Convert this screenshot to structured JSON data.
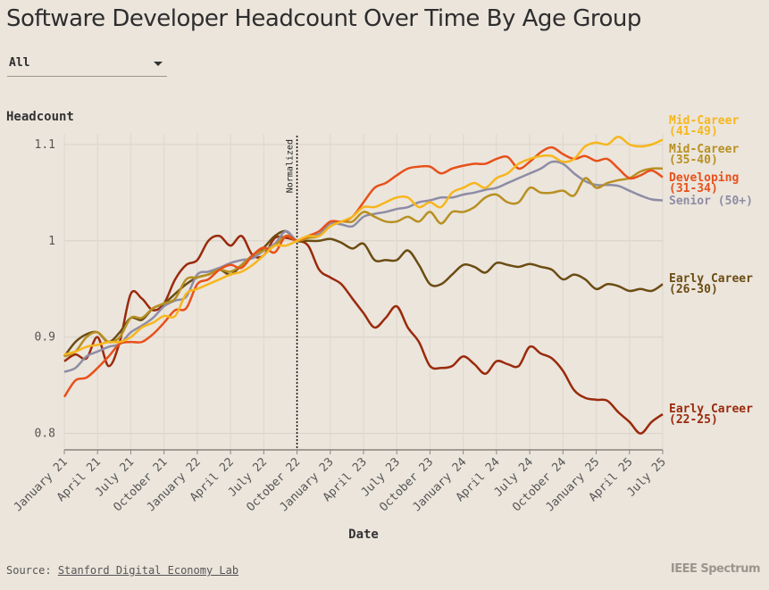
{
  "chart_data": {
    "type": "line",
    "title": "Software Developer Headcount Over Time By Age Group",
    "filter": "All",
    "ylabel": "Headcount",
    "xlabel": "Date",
    "annotation": {
      "text": "Normalized",
      "x": "October 22"
    },
    "categories": [
      "January 21",
      null,
      null,
      "April 21",
      null,
      null,
      "July 21",
      null,
      null,
      "October 21",
      null,
      null,
      "January 22",
      null,
      null,
      "April 22",
      null,
      null,
      "July 22",
      null,
      null,
      "October 22",
      null,
      null,
      "January 23",
      null,
      null,
      "April 23",
      null,
      null,
      "July 23",
      null,
      null,
      "October 23",
      null,
      null,
      "January 24",
      null,
      null,
      "April 24",
      null,
      null,
      "July 24",
      null,
      null,
      "October 24",
      null,
      null,
      "January 25",
      null,
      null,
      "April 25",
      null,
      null,
      "July 25"
    ],
    "ylim": [
      0.783,
      1.111
    ],
    "yticks": [
      0.8,
      0.9,
      1,
      1.1
    ],
    "grid": true,
    "series": [
      {
        "name": "Early Career (22-25)",
        "color": "#9a2a0c",
        "values": [
          0.875,
          0.882,
          0.878,
          0.9,
          0.87,
          0.895,
          0.945,
          0.94,
          0.928,
          0.935,
          0.96,
          0.975,
          0.98,
          1.0,
          1.005,
          0.995,
          1.005,
          0.985,
          0.985,
          1.003,
          1.003,
          1.0,
          0.995,
          0.97,
          0.962,
          0.955,
          0.94,
          0.925,
          0.91,
          0.92,
          0.932,
          0.91,
          0.895,
          0.87,
          0.868,
          0.87,
          0.88,
          0.872,
          0.862,
          0.875,
          0.872,
          0.87,
          0.89,
          0.883,
          0.878,
          0.865,
          0.845,
          0.837,
          0.835,
          0.834,
          0.822,
          0.812,
          0.8,
          0.812,
          0.82
        ]
      },
      {
        "name": "Early Career (26-30)",
        "color": "#6b4c12",
        "values": [
          0.88,
          0.895,
          0.903,
          0.905,
          0.895,
          0.905,
          0.92,
          0.918,
          0.93,
          0.935,
          0.945,
          0.955,
          0.962,
          0.965,
          0.97,
          0.965,
          0.975,
          0.985,
          0.993,
          1.005,
          1.01,
          1.0,
          1.0,
          1.0,
          1.002,
          0.998,
          0.992,
          0.997,
          0.98,
          0.98,
          0.98,
          0.99,
          0.975,
          0.955,
          0.955,
          0.965,
          0.975,
          0.973,
          0.967,
          0.977,
          0.975,
          0.973,
          0.976,
          0.973,
          0.97,
          0.96,
          0.965,
          0.96,
          0.95,
          0.955,
          0.953,
          0.948,
          0.95,
          0.948,
          0.955
        ]
      },
      {
        "name": "Senior (50+)",
        "color": "#8e8ca5",
        "values": [
          0.864,
          0.868,
          0.88,
          0.885,
          0.89,
          0.893,
          0.905,
          0.912,
          0.92,
          0.932,
          0.938,
          0.942,
          0.965,
          0.968,
          0.972,
          0.977,
          0.98,
          0.982,
          0.99,
          0.997,
          1.01,
          1.0,
          1.005,
          1.007,
          1.018,
          1.017,
          1.015,
          1.025,
          1.028,
          1.03,
          1.033,
          1.035,
          1.04,
          1.042,
          1.045,
          1.045,
          1.048,
          1.05,
          1.053,
          1.055,
          1.06,
          1.065,
          1.07,
          1.075,
          1.082,
          1.08,
          1.07,
          1.062,
          1.058,
          1.058,
          1.057,
          1.052,
          1.047,
          1.043,
          1.042
        ]
      },
      {
        "name": "Mid-Career (35-40)",
        "color": "#b89022",
        "values": [
          0.88,
          0.885,
          0.9,
          0.905,
          0.895,
          0.9,
          0.92,
          0.92,
          0.93,
          0.935,
          0.94,
          0.96,
          0.962,
          0.965,
          0.97,
          0.968,
          0.975,
          0.985,
          0.99,
          0.995,
          1.005,
          1.0,
          1.003,
          1.005,
          1.015,
          1.02,
          1.02,
          1.03,
          1.025,
          1.02,
          1.02,
          1.025,
          1.02,
          1.03,
          1.018,
          1.03,
          1.03,
          1.035,
          1.045,
          1.048,
          1.04,
          1.04,
          1.055,
          1.05,
          1.05,
          1.052,
          1.047,
          1.065,
          1.055,
          1.06,
          1.063,
          1.065,
          1.072,
          1.075,
          1.075
        ]
      },
      {
        "name": "Developing (31-34)",
        "color": "#e8501a",
        "values": [
          0.838,
          0.855,
          0.858,
          0.868,
          0.88,
          0.893,
          0.895,
          0.895,
          0.903,
          0.915,
          0.928,
          0.93,
          0.955,
          0.96,
          0.97,
          0.975,
          0.972,
          0.985,
          0.993,
          0.988,
          1.005,
          1.0,
          1.005,
          1.01,
          1.02,
          1.02,
          1.025,
          1.04,
          1.055,
          1.06,
          1.068,
          1.075,
          1.077,
          1.077,
          1.07,
          1.075,
          1.078,
          1.08,
          1.08,
          1.085,
          1.087,
          1.075,
          1.082,
          1.092,
          1.097,
          1.09,
          1.085,
          1.088,
          1.083,
          1.085,
          1.075,
          1.065,
          1.068,
          1.073,
          1.066
        ]
      },
      {
        "name": "Mid-Career (41-49)",
        "color": "#f7b61c",
        "values": [
          0.882,
          0.885,
          0.89,
          0.892,
          0.895,
          0.895,
          0.9,
          0.91,
          0.915,
          0.922,
          0.922,
          0.945,
          0.95,
          0.955,
          0.96,
          0.965,
          0.968,
          0.975,
          0.985,
          0.995,
          0.995,
          1.0,
          1.005,
          1.005,
          1.015,
          1.02,
          1.025,
          1.035,
          1.035,
          1.04,
          1.045,
          1.045,
          1.035,
          1.04,
          1.035,
          1.05,
          1.055,
          1.06,
          1.055,
          1.065,
          1.07,
          1.08,
          1.085,
          1.088,
          1.088,
          1.082,
          1.085,
          1.098,
          1.102,
          1.1,
          1.108,
          1.1,
          1.098,
          1.1,
          1.105
        ]
      }
    ]
  },
  "source": {
    "label": "Source:",
    "link": "Stanford Digital Economy Lab"
  },
  "brand": "IEEE Spectrum"
}
